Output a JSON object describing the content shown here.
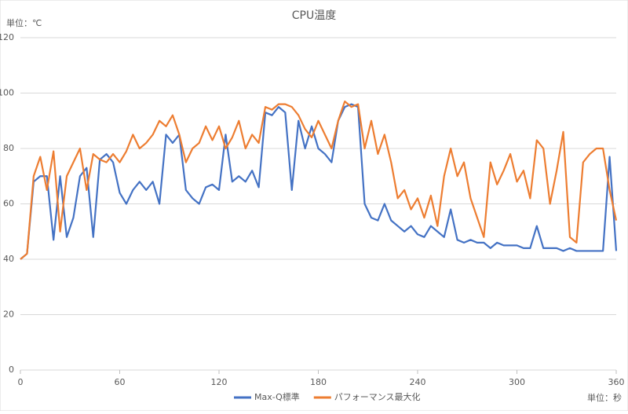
{
  "chart_data": {
    "type": "line",
    "title": "CPU温度",
    "y_unit_label": "単位：℃",
    "x_unit_label": "単位：秒",
    "x": [
      0,
      4,
      8,
      12,
      16,
      20,
      24,
      28,
      32,
      36,
      40,
      44,
      48,
      52,
      56,
      60,
      64,
      68,
      72,
      76,
      80,
      84,
      88,
      92,
      96,
      100,
      104,
      108,
      112,
      116,
      120,
      124,
      128,
      132,
      136,
      140,
      144,
      148,
      152,
      156,
      160,
      164,
      168,
      172,
      176,
      180,
      184,
      188,
      192,
      196,
      200,
      204,
      208,
      212,
      216,
      220,
      224,
      228,
      232,
      236,
      240,
      244,
      248,
      252,
      256,
      260,
      264,
      268,
      272,
      276,
      280,
      284,
      288,
      292,
      296,
      300,
      304,
      308,
      312,
      316,
      320,
      324,
      328,
      332,
      336,
      340,
      344,
      348,
      352,
      356,
      360
    ],
    "series": [
      {
        "name": "Max-Q標準",
        "color": "#4472c4",
        "values": [
          40,
          42,
          68,
          70,
          70,
          47,
          70,
          48,
          55,
          70,
          73,
          48,
          76,
          78,
          75,
          64,
          60,
          65,
          68,
          65,
          68,
          60,
          85,
          82,
          85,
          65,
          62,
          60,
          66,
          67,
          65,
          85,
          68,
          70,
          68,
          72,
          66,
          93,
          92,
          95,
          93,
          65,
          90,
          80,
          88,
          80,
          78,
          75,
          90,
          95,
          96,
          95,
          60,
          55,
          54,
          60,
          54,
          52,
          50,
          52,
          49,
          48,
          52,
          50,
          48,
          58,
          47,
          46,
          47,
          46,
          46,
          44,
          46,
          45,
          45,
          45,
          44,
          44,
          52,
          44,
          44,
          44,
          43,
          44,
          43,
          43,
          43,
          43,
          43,
          77,
          43
        ]
      },
      {
        "name": "パフォーマンス最大化",
        "color": "#ed7d31",
        "values": [
          40,
          42,
          70,
          77,
          65,
          79,
          50,
          70,
          75,
          80,
          65,
          78,
          76,
          75,
          78,
          75,
          79,
          85,
          80,
          82,
          85,
          90,
          88,
          92,
          85,
          75,
          80,
          82,
          88,
          83,
          88,
          80,
          84,
          90,
          80,
          85,
          82,
          95,
          94,
          96,
          96,
          95,
          92,
          87,
          84,
          90,
          85,
          80,
          90,
          97,
          95,
          96,
          80,
          90,
          78,
          85,
          75,
          62,
          65,
          58,
          62,
          55,
          63,
          52,
          70,
          80,
          70,
          75,
          62,
          55,
          48,
          75,
          67,
          72,
          78,
          68,
          72,
          62,
          83,
          80,
          60,
          72,
          86,
          48,
          46,
          75,
          78,
          80,
          80,
          65,
          54
        ]
      }
    ],
    "xlim": [
      0,
      360
    ],
    "xticks": [
      0,
      60,
      120,
      180,
      240,
      300,
      360
    ],
    "ylim": [
      0,
      120
    ],
    "yticks": [
      0,
      20,
      40,
      60,
      80,
      100,
      120
    ],
    "grid": true
  }
}
